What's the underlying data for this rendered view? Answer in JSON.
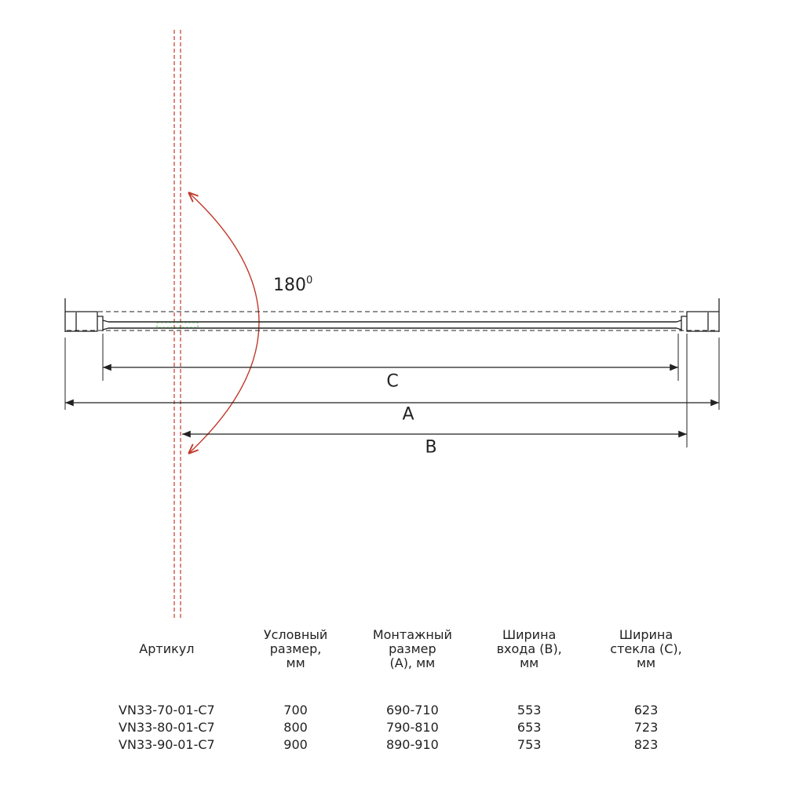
{
  "drawing": {
    "angle_label": "180",
    "angle_superscript": "0",
    "dimension_labels": {
      "A": "A",
      "B": "B",
      "C": "C"
    },
    "colors": {
      "lines": "#222222",
      "axis": "#c0392b",
      "arc": "#c0392b",
      "seal": "#4caf50"
    }
  },
  "table": {
    "headers": [
      "Артикул",
      [
        "Условный",
        "размер,",
        "мм"
      ],
      [
        "Монтажный",
        "размер",
        "(А), мм"
      ],
      [
        "Ширина",
        "входа (В),",
        "мм"
      ],
      [
        "Ширина",
        "стекла (С),",
        "мм"
      ]
    ],
    "rows": [
      [
        "VN33-70-01-C7",
        "700",
        "690-710",
        "553",
        "623"
      ],
      [
        "VN33-80-01-C7",
        "800",
        "790-810",
        "653",
        "723"
      ],
      [
        "VN33-90-01-C7",
        "900",
        "890-910",
        "753",
        "823"
      ]
    ]
  }
}
